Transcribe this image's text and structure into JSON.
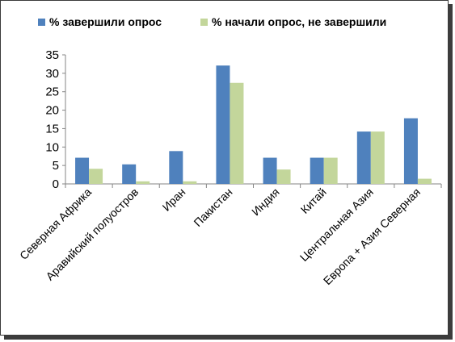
{
  "chart_data": {
    "type": "bar",
    "categories": [
      "Северная Африка",
      "Аравийский полуостров",
      "Иран",
      "Пакистан",
      "Индия",
      "Китай",
      "Центральная Азия",
      "Европа + Азия Северная"
    ],
    "series": [
      {
        "name": "% завершили опрос",
        "color": "#4f81bd",
        "values": [
          7.1,
          5.3,
          8.9,
          32.1,
          7.1,
          7.1,
          14.2,
          17.8
        ]
      },
      {
        "name": "% начали опрос, не завершили",
        "color": "#c3d69b",
        "values": [
          4.1,
          0.7,
          0.7,
          27.4,
          3.9,
          7.1,
          14.2,
          1.4
        ]
      }
    ],
    "ylim": [
      0,
      35
    ],
    "yticks": [
      0,
      5,
      10,
      15,
      20,
      25,
      30,
      35
    ],
    "grid": false,
    "legend_position": "top"
  }
}
